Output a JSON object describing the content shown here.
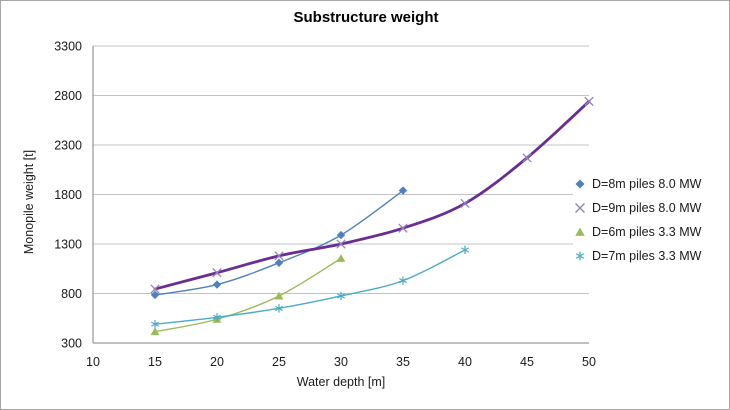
{
  "chart_data": {
    "type": "line",
    "title": "Substructure weight",
    "xlabel": "Water depth [m]",
    "ylabel": "Monopile weight [t]",
    "xlim": [
      10,
      50
    ],
    "ylim": [
      300,
      3300
    ],
    "x_ticks": [
      10,
      15,
      20,
      25,
      30,
      35,
      40,
      45,
      50
    ],
    "y_ticks": [
      300,
      800,
      1300,
      1800,
      2300,
      2800,
      3300
    ],
    "grid": "horizontal-only",
    "legend_position": "right",
    "smoothed_lines": true,
    "series": [
      {
        "name": "D=8m piles 8.0 MW",
        "marker": "diamond",
        "color": "#4F81BD",
        "line_color": "#4F81BD",
        "line_width": 1.4,
        "x": [
          15,
          20,
          25,
          30,
          35
        ],
        "y": [
          785,
          890,
          1110,
          1390,
          1840
        ]
      },
      {
        "name": "D=9m piles 8.0 MW",
        "marker": "x",
        "color": "#9184BC",
        "line_color": "#6A2D91",
        "line_width": 2.8,
        "x": [
          15,
          20,
          25,
          30,
          35,
          40,
          45,
          50
        ],
        "y": [
          845,
          1010,
          1180,
          1300,
          1460,
          1710,
          2170,
          2740
        ]
      },
      {
        "name": "D=6m piles 3.3 MW",
        "marker": "triangle",
        "color": "#9BBB59",
        "line_color": "#9BBB59",
        "line_width": 1.4,
        "x": [
          15,
          20,
          25,
          30
        ],
        "y": [
          415,
          540,
          775,
          1155
        ]
      },
      {
        "name": "D=7m piles 3.3 MW",
        "marker": "asterisk",
        "color": "#4BACC6",
        "line_color": "#4BACC6",
        "line_width": 1.4,
        "x": [
          15,
          20,
          25,
          30,
          35,
          40
        ],
        "y": [
          490,
          560,
          650,
          775,
          930,
          1240
        ]
      }
    ],
    "colors": {
      "background": "#FFFFFF",
      "chart_border": "#A6A6A6",
      "axis_line": "#808080",
      "gridline": "#C3C3C3",
      "text": "#000000"
    }
  }
}
